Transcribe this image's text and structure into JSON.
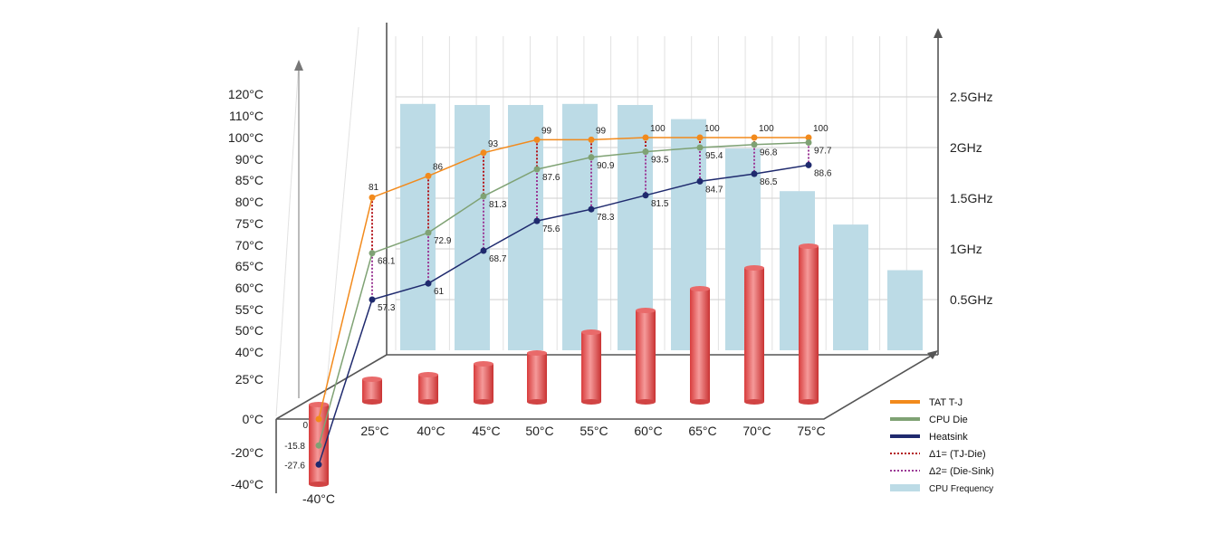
{
  "chart_data": {
    "type": "line",
    "categories": [
      "-40°C",
      "25°C",
      "40°C",
      "45°C",
      "50°C",
      "55°C",
      "60°C",
      "65°C",
      "70°C",
      "75°C"
    ],
    "left_axis_ticks": [
      "120°C",
      "110°C",
      "100°C",
      "90°C",
      "85°C",
      "80°C",
      "75°C",
      "70°C",
      "65°C",
      "60°C",
      "55°C",
      "50°C",
      "40°C",
      "25°C",
      "0°C",
      "-20°C",
      "-40°C"
    ],
    "right_axis_ticks": [
      "2.5GHz",
      "2GHz",
      "1.5GHz",
      "1GHz",
      "0.5GHz"
    ],
    "series": [
      {
        "name": "TAT T-J",
        "color": "#f28a1c",
        "values": [
          null,
          81,
          86,
          93,
          99,
          99,
          100,
          100,
          100,
          100
        ]
      },
      {
        "name": "CPU Die",
        "color": "#7fa274",
        "values": [
          -15.8,
          68.1,
          72.9,
          81.3,
          87.6,
          90.9,
          93.5,
          95.4,
          96.8,
          97.7
        ]
      },
      {
        "name": "Heatsink",
        "color": "#1f2a6e",
        "values": [
          -27.6,
          57.3,
          61,
          68.7,
          75.6,
          78.3,
          81.5,
          84.7,
          86.5,
          88.6
        ]
      }
    ],
    "extra_labels": {
      "tj_at_minus40": "0"
    },
    "delta_series": [
      {
        "name": "Δ1= (TJ-Die)",
        "color": "#b3151b",
        "style": "dotted"
      },
      {
        "name": "Δ2= (Die-Sink)",
        "color": "#9b3a96",
        "style": "dotted"
      }
    ],
    "frequency_series": {
      "name": "CPU Frequency",
      "color": "#bcdbe6",
      "values_ghz": [
        2.43,
        2.42,
        2.42,
        2.43,
        2.42,
        2.28,
        1.99,
        1.57,
        1.24,
        0.79
      ]
    },
    "ambient_bars": {
      "color": "#e05757",
      "values": [
        -40,
        25,
        40,
        45,
        50,
        55,
        60,
        65,
        70,
        75
      ]
    },
    "legend_placement": "bottom-right"
  }
}
